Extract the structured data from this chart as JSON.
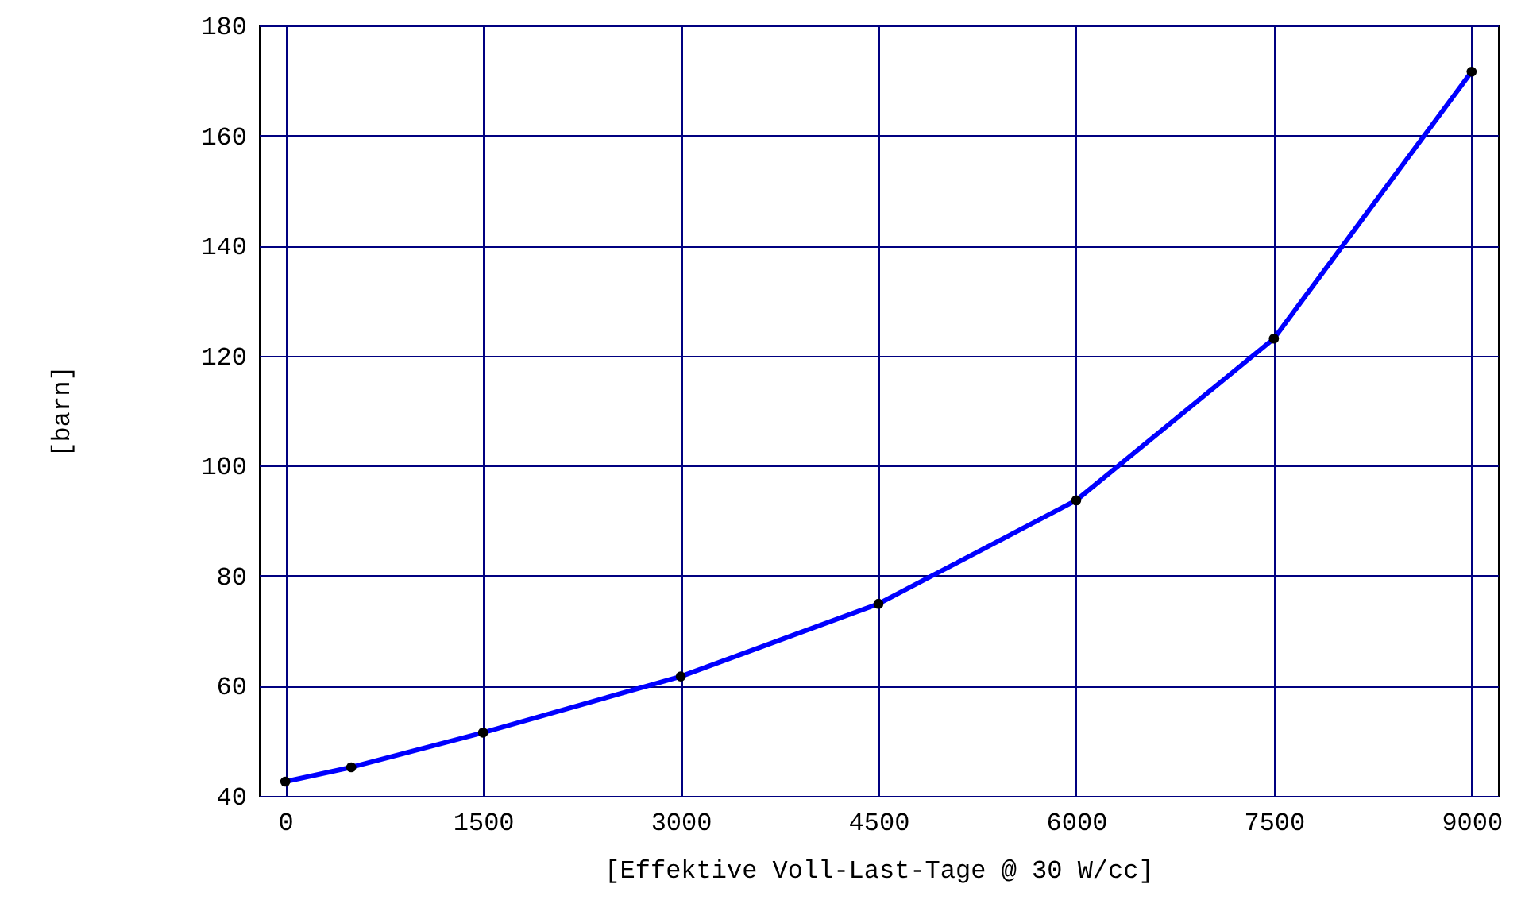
{
  "chart_data": {
    "type": "line",
    "xlabel": "[Effektive Voll-Last-Tage @ 30 W/cc]",
    "ylabel": "[barn]",
    "x": [
      0,
      500,
      1500,
      3000,
      4500,
      6000,
      7500,
      9000
    ],
    "series": [
      {
        "color": "#0000ff",
        "values": [
          42.6,
          45.2,
          51.5,
          61.7,
          74.9,
          93.7,
          123.1,
          171.6
        ]
      }
    ],
    "xlim": [
      -200,
      9200
    ],
    "xticks": [
      0,
      1500,
      3000,
      4500,
      6000,
      7500,
      9000
    ],
    "ylim": [
      40,
      180
    ],
    "yticks": [
      40,
      60,
      80,
      100,
      120,
      140,
      160,
      180
    ],
    "grid": true,
    "marker": "circle",
    "line_style": "solid"
  }
}
